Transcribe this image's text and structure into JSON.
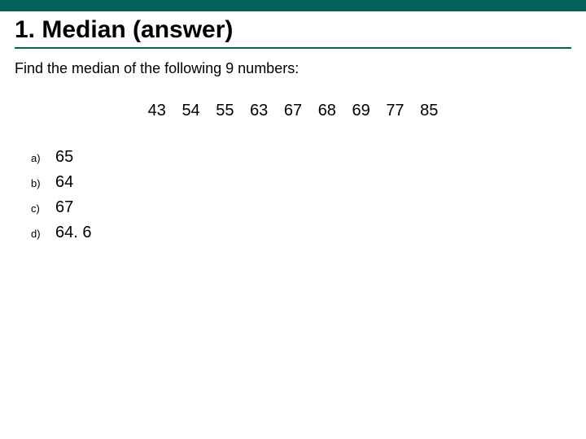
{
  "colors": {
    "bar": "#00635a",
    "underline": "#00635a",
    "text": "#000000",
    "background": "#ffffff"
  },
  "title": "1. Median (answer)",
  "prompt": "Find the median of the following 9 numbers:",
  "numbers": [
    "43",
    "54",
    "55",
    "63",
    "67",
    "68",
    "69",
    "77",
    "85"
  ],
  "options": [
    {
      "label": "a)",
      "value": "65"
    },
    {
      "label": "b)",
      "value": "64"
    },
    {
      "label": "c)",
      "value": "67"
    },
    {
      "label": "d)",
      "value": "64. 6"
    }
  ],
  "typography": {
    "title_fontsize": 30,
    "prompt_fontsize": 18,
    "numbers_fontsize": 20,
    "option_label_fontsize": 13,
    "option_value_fontsize": 20,
    "font_family": "Arial"
  }
}
